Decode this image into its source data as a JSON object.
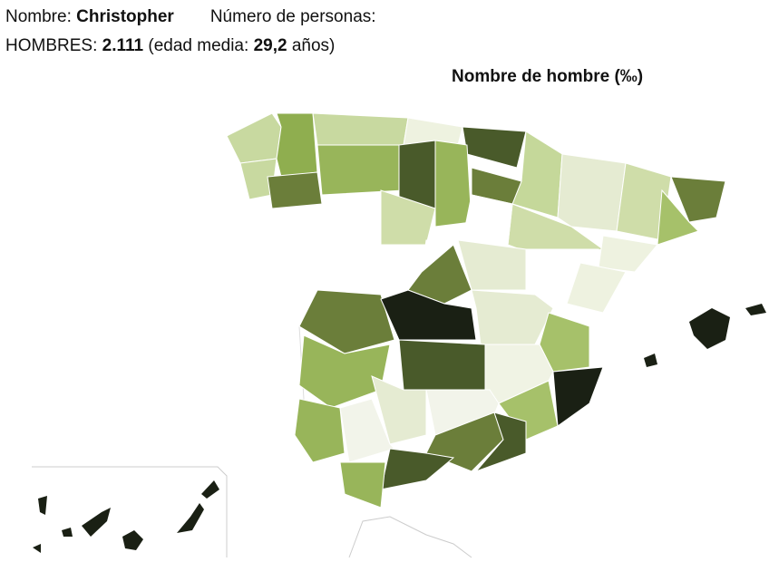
{
  "header": {
    "name_label": "Nombre:",
    "name": "Christopher",
    "count_label": "Número de personas:"
  },
  "stats": {
    "group_label": "HOMBRES:",
    "count": "2.111",
    "age_label": "(edad media:",
    "age": "29,2",
    "age_unit": "años)"
  },
  "map": {
    "title": "Nombre de hombre (‰)"
  }
}
